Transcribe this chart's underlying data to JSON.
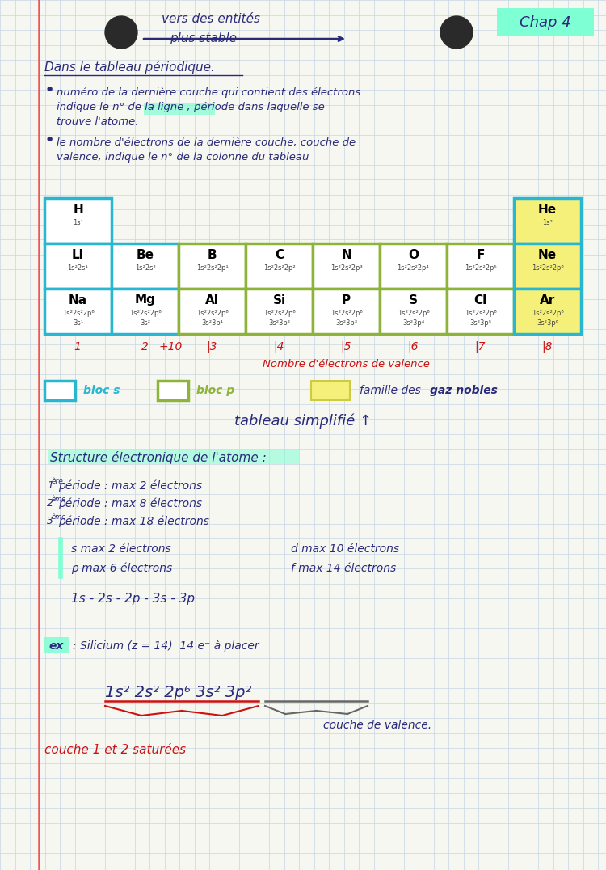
{
  "bg_color": "#f7f7f2",
  "grid_color": "#c5d5e5",
  "text_color": "#2a2a7a",
  "red_color": "#cc1111",
  "highlight_cyan": "#7fffd4",
  "chap_bg": "#7fffd4",
  "periodic_table": {
    "bloc_s_color": "#29b6d0",
    "bloc_p_color": "#8db33a",
    "noble_gas_color": "#f5f07a",
    "elements": [
      {
        "symbol": "H",
        "config1": "1s¹",
        "config2": "",
        "row": 0,
        "col": 0,
        "type": "s"
      },
      {
        "symbol": "He",
        "config1": "1s²",
        "config2": "",
        "row": 0,
        "col": 7,
        "type": "noble"
      },
      {
        "symbol": "Li",
        "config1": "1s²2s¹",
        "config2": "",
        "row": 1,
        "col": 0,
        "type": "s"
      },
      {
        "symbol": "Be",
        "config1": "1s²2s²",
        "config2": "",
        "row": 1,
        "col": 1,
        "type": "s"
      },
      {
        "symbol": "B",
        "config1": "1s²2s²2p¹",
        "config2": "",
        "row": 1,
        "col": 2,
        "type": "p"
      },
      {
        "symbol": "C",
        "config1": "1s²2s²2p²",
        "config2": "",
        "row": 1,
        "col": 3,
        "type": "p"
      },
      {
        "symbol": "N",
        "config1": "1s²2s²2p³",
        "config2": "",
        "row": 1,
        "col": 4,
        "type": "p"
      },
      {
        "symbol": "O",
        "config1": "1s²2s²2p⁴",
        "config2": "",
        "row": 1,
        "col": 5,
        "type": "p"
      },
      {
        "symbol": "F",
        "config1": "1s²2s²2p⁵",
        "config2": "",
        "row": 1,
        "col": 6,
        "type": "p"
      },
      {
        "symbol": "Ne",
        "config1": "1s²2s²2p⁶",
        "config2": "",
        "row": 1,
        "col": 7,
        "type": "noble"
      },
      {
        "symbol": "Na",
        "config1": "1s²2s²2p⁶",
        "config2": "3s¹",
        "row": 2,
        "col": 0,
        "type": "s"
      },
      {
        "symbol": "Mg",
        "config1": "1s²2s²2p⁶",
        "config2": "3s²",
        "row": 2,
        "col": 1,
        "type": "s"
      },
      {
        "symbol": "Al",
        "config1": "1s²2s²2p⁶",
        "config2": "3s²3p¹",
        "row": 2,
        "col": 2,
        "type": "p"
      },
      {
        "symbol": "Si",
        "config1": "1s²2s²2p⁶",
        "config2": "3s²3p²",
        "row": 2,
        "col": 3,
        "type": "p"
      },
      {
        "symbol": "P",
        "config1": "1s²2s²2p⁶",
        "config2": "3s²3p³",
        "row": 2,
        "col": 4,
        "type": "p"
      },
      {
        "symbol": "S",
        "config1": "1s²2s²2p⁶",
        "config2": "3s²3p⁴",
        "row": 2,
        "col": 5,
        "type": "p"
      },
      {
        "symbol": "Cl",
        "config1": "1s²2s²2p⁶",
        "config2": "3s²3p⁵",
        "row": 2,
        "col": 6,
        "type": "p"
      },
      {
        "symbol": "Ar",
        "config1": "1s²2s²2p⁶",
        "config2": "3s²3p⁶",
        "row": 2,
        "col": 7,
        "type": "noble"
      }
    ]
  }
}
